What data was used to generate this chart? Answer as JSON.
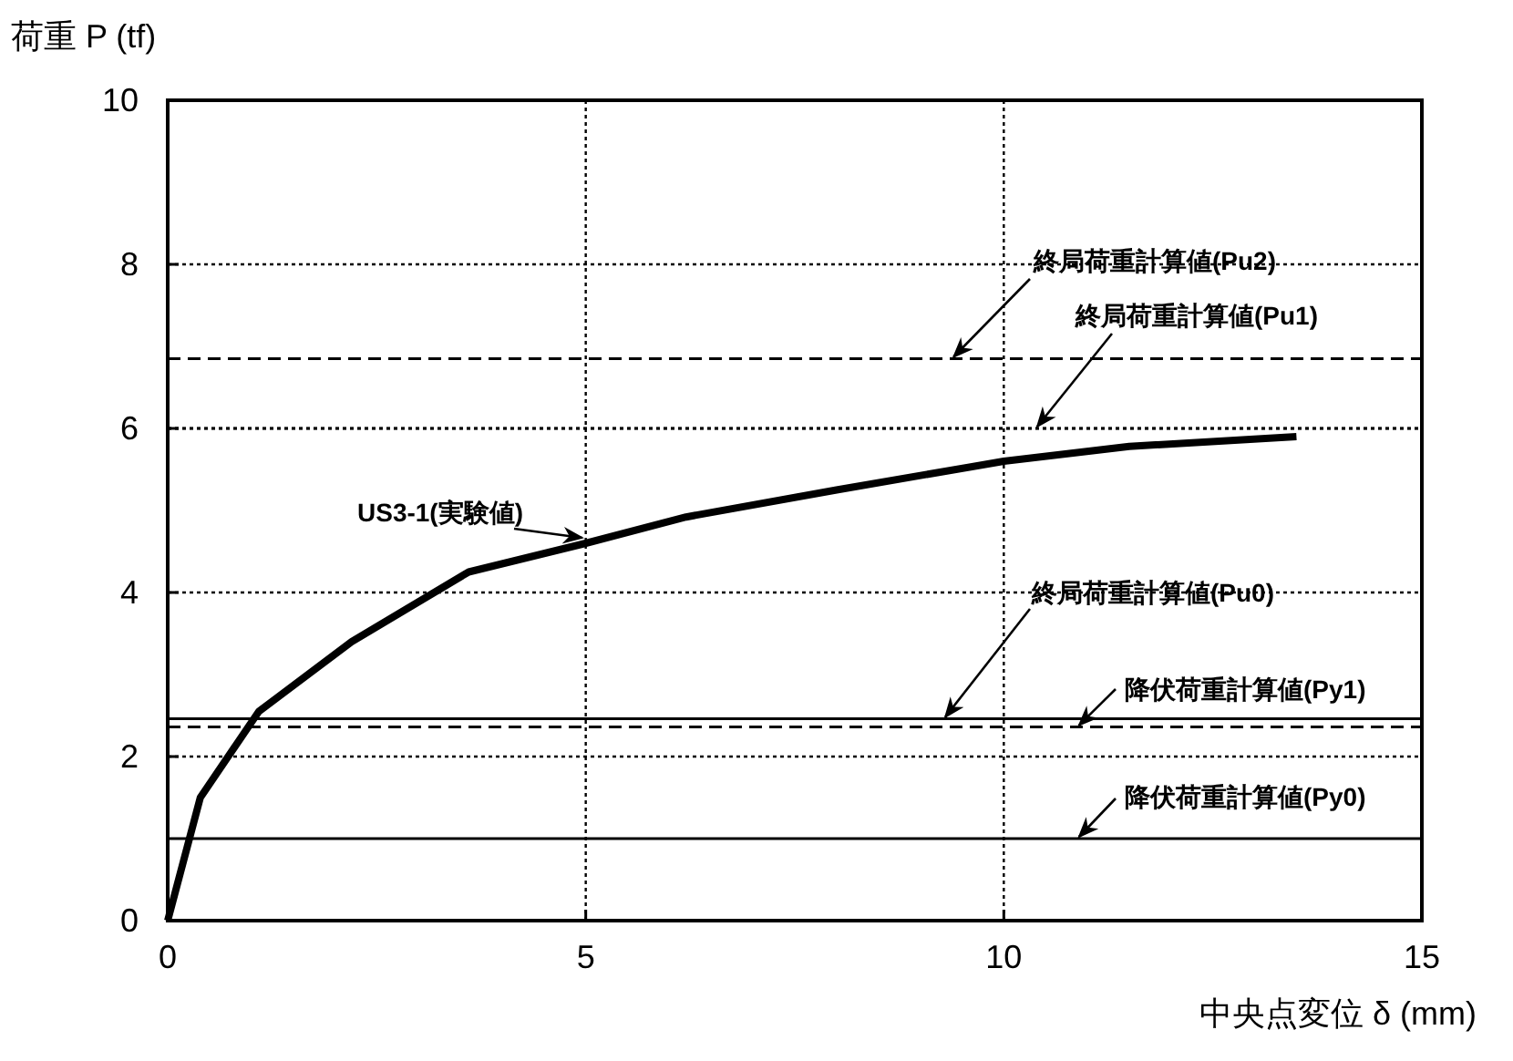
{
  "chart_data": {
    "type": "line",
    "xlabel": "中央点変位 δ (mm)",
    "ylabel": "荷重 P (tf)",
    "series": [
      {
        "name": "US3-1(実験値)",
        "color": "#000000",
        "x": [
          0,
          0.39,
          1.09,
          2.2,
          3.6,
          5,
          6.2,
          8,
          10,
          11.5,
          13.5
        ],
        "values": [
          0,
          1.5,
          2.55,
          3.4,
          4.25,
          4.6,
          4.92,
          5.25,
          5.6,
          5.78,
          5.9
        ]
      }
    ],
    "xlim": [
      0,
      15
    ],
    "ylim": [
      0,
      10
    ],
    "xticks": [
      0,
      5,
      10,
      15
    ],
    "yticks": [
      0,
      2,
      4,
      6,
      8,
      10
    ],
    "grid": true,
    "line_style": "solid",
    "marker": "none",
    "ref_lines": [
      {
        "axis": "y",
        "value": 6.85,
        "label": "終局荷重計算値(Pu2)",
        "line_style": "dashed"
      },
      {
        "axis": "y",
        "value": 6.0,
        "label": "終局荷重計算値(Pu1)",
        "line_style": "dotted"
      },
      {
        "axis": "y",
        "value": 2.46,
        "label": "終局荷重計算値(Pu0)",
        "line_style": "solid"
      },
      {
        "axis": "y",
        "value": 2.36,
        "label": "降伏荷重計算値(Py1)",
        "line_style": "dashed"
      },
      {
        "axis": "y",
        "value": 1.0,
        "label": "降伏荷重計算値(Py0)",
        "line_style": "solid"
      }
    ]
  }
}
